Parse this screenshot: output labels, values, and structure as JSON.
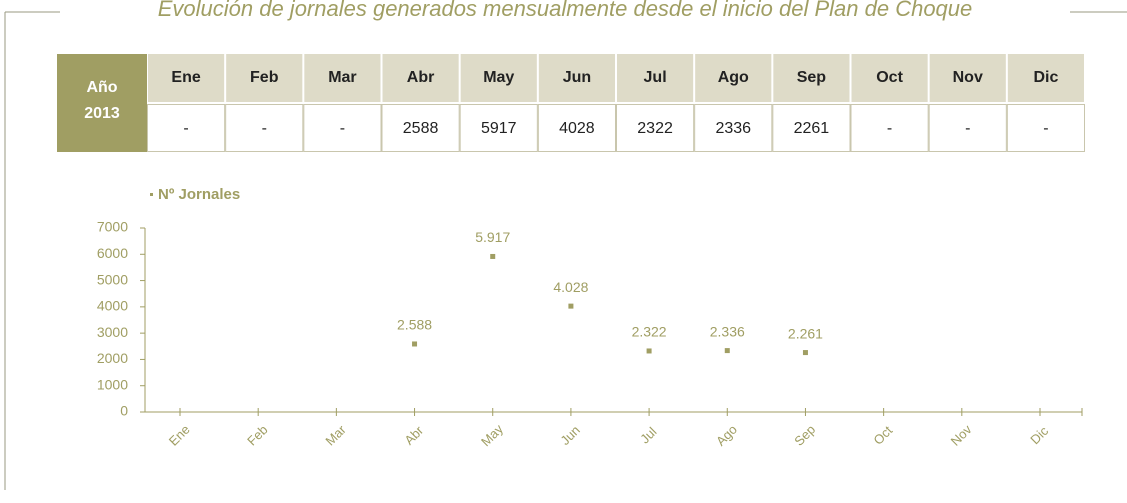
{
  "title": "Evolución de jornales generados mensualmente desde el inicio del Plan de Choque",
  "table": {
    "corner": [
      "Año",
      "2013"
    ],
    "header": [
      "Ene",
      "Feb",
      "Mar",
      "Abr",
      "May",
      "Jun",
      "Jul",
      "Ago",
      "Sep",
      "Oct",
      "Nov",
      "Dic"
    ],
    "row": [
      "-",
      "-",
      "-",
      2588,
      5917,
      4028,
      2322,
      2336,
      2261,
      "-",
      "-",
      "-"
    ]
  },
  "chart_data": {
    "type": "dot",
    "categories": [
      "Ene",
      "Feb",
      "Mar",
      "Abr",
      "May",
      "Jun",
      "Jul",
      "Ago",
      "Sep",
      "Oct",
      "Nov",
      "Dic"
    ],
    "series": [
      {
        "name": "Nº Jornales",
        "color": "#a09e63",
        "values": [
          null,
          null,
          null,
          2588,
          5917,
          4028,
          2322,
          2336,
          2261,
          null,
          null,
          null
        ],
        "value_labels": [
          null,
          null,
          null,
          "2.588",
          "5.917",
          "4.028",
          "2.322",
          "2.336",
          "2.261",
          null,
          null,
          null
        ]
      }
    ],
    "ylim": [
      0,
      7000
    ],
    "yticks": [
      0,
      1000,
      2000,
      3000,
      4000,
      5000,
      6000,
      7000
    ]
  }
}
